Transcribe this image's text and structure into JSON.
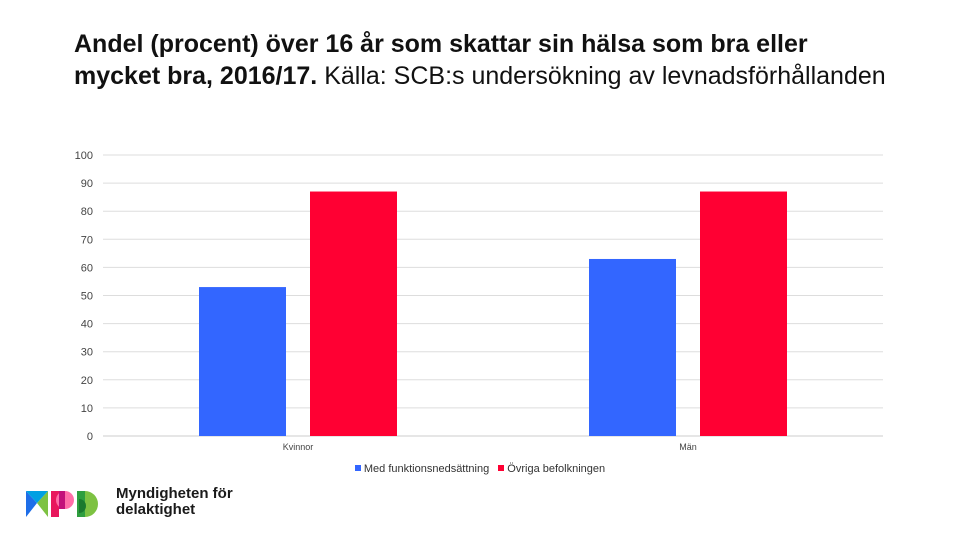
{
  "title": {
    "bold": "Andel (procent) över 16 år som skattar sin hälsa som bra eller mycket bra, 2016/17.",
    "normal": "Källa: SCB:s undersökning av levnadsförhållanden"
  },
  "chart_data": {
    "type": "bar",
    "categories": [
      "Kvinnor",
      "Män"
    ],
    "series": [
      {
        "name": "Med funktionsnedsättning",
        "values": [
          53,
          63
        ],
        "color": "#3366ff"
      },
      {
        "name": "Övriga befolkningen",
        "values": [
          87,
          87
        ],
        "color": "#ff0033"
      }
    ],
    "ylim": [
      0,
      100
    ],
    "yticks": [
      0,
      10,
      20,
      30,
      40,
      50,
      60,
      70,
      80,
      90,
      100
    ],
    "grid": true,
    "legend": "bottom"
  },
  "logo": {
    "line1": "Myndigheten för",
    "line2": "delaktighet",
    "icon": "mfd-logo-icon"
  }
}
